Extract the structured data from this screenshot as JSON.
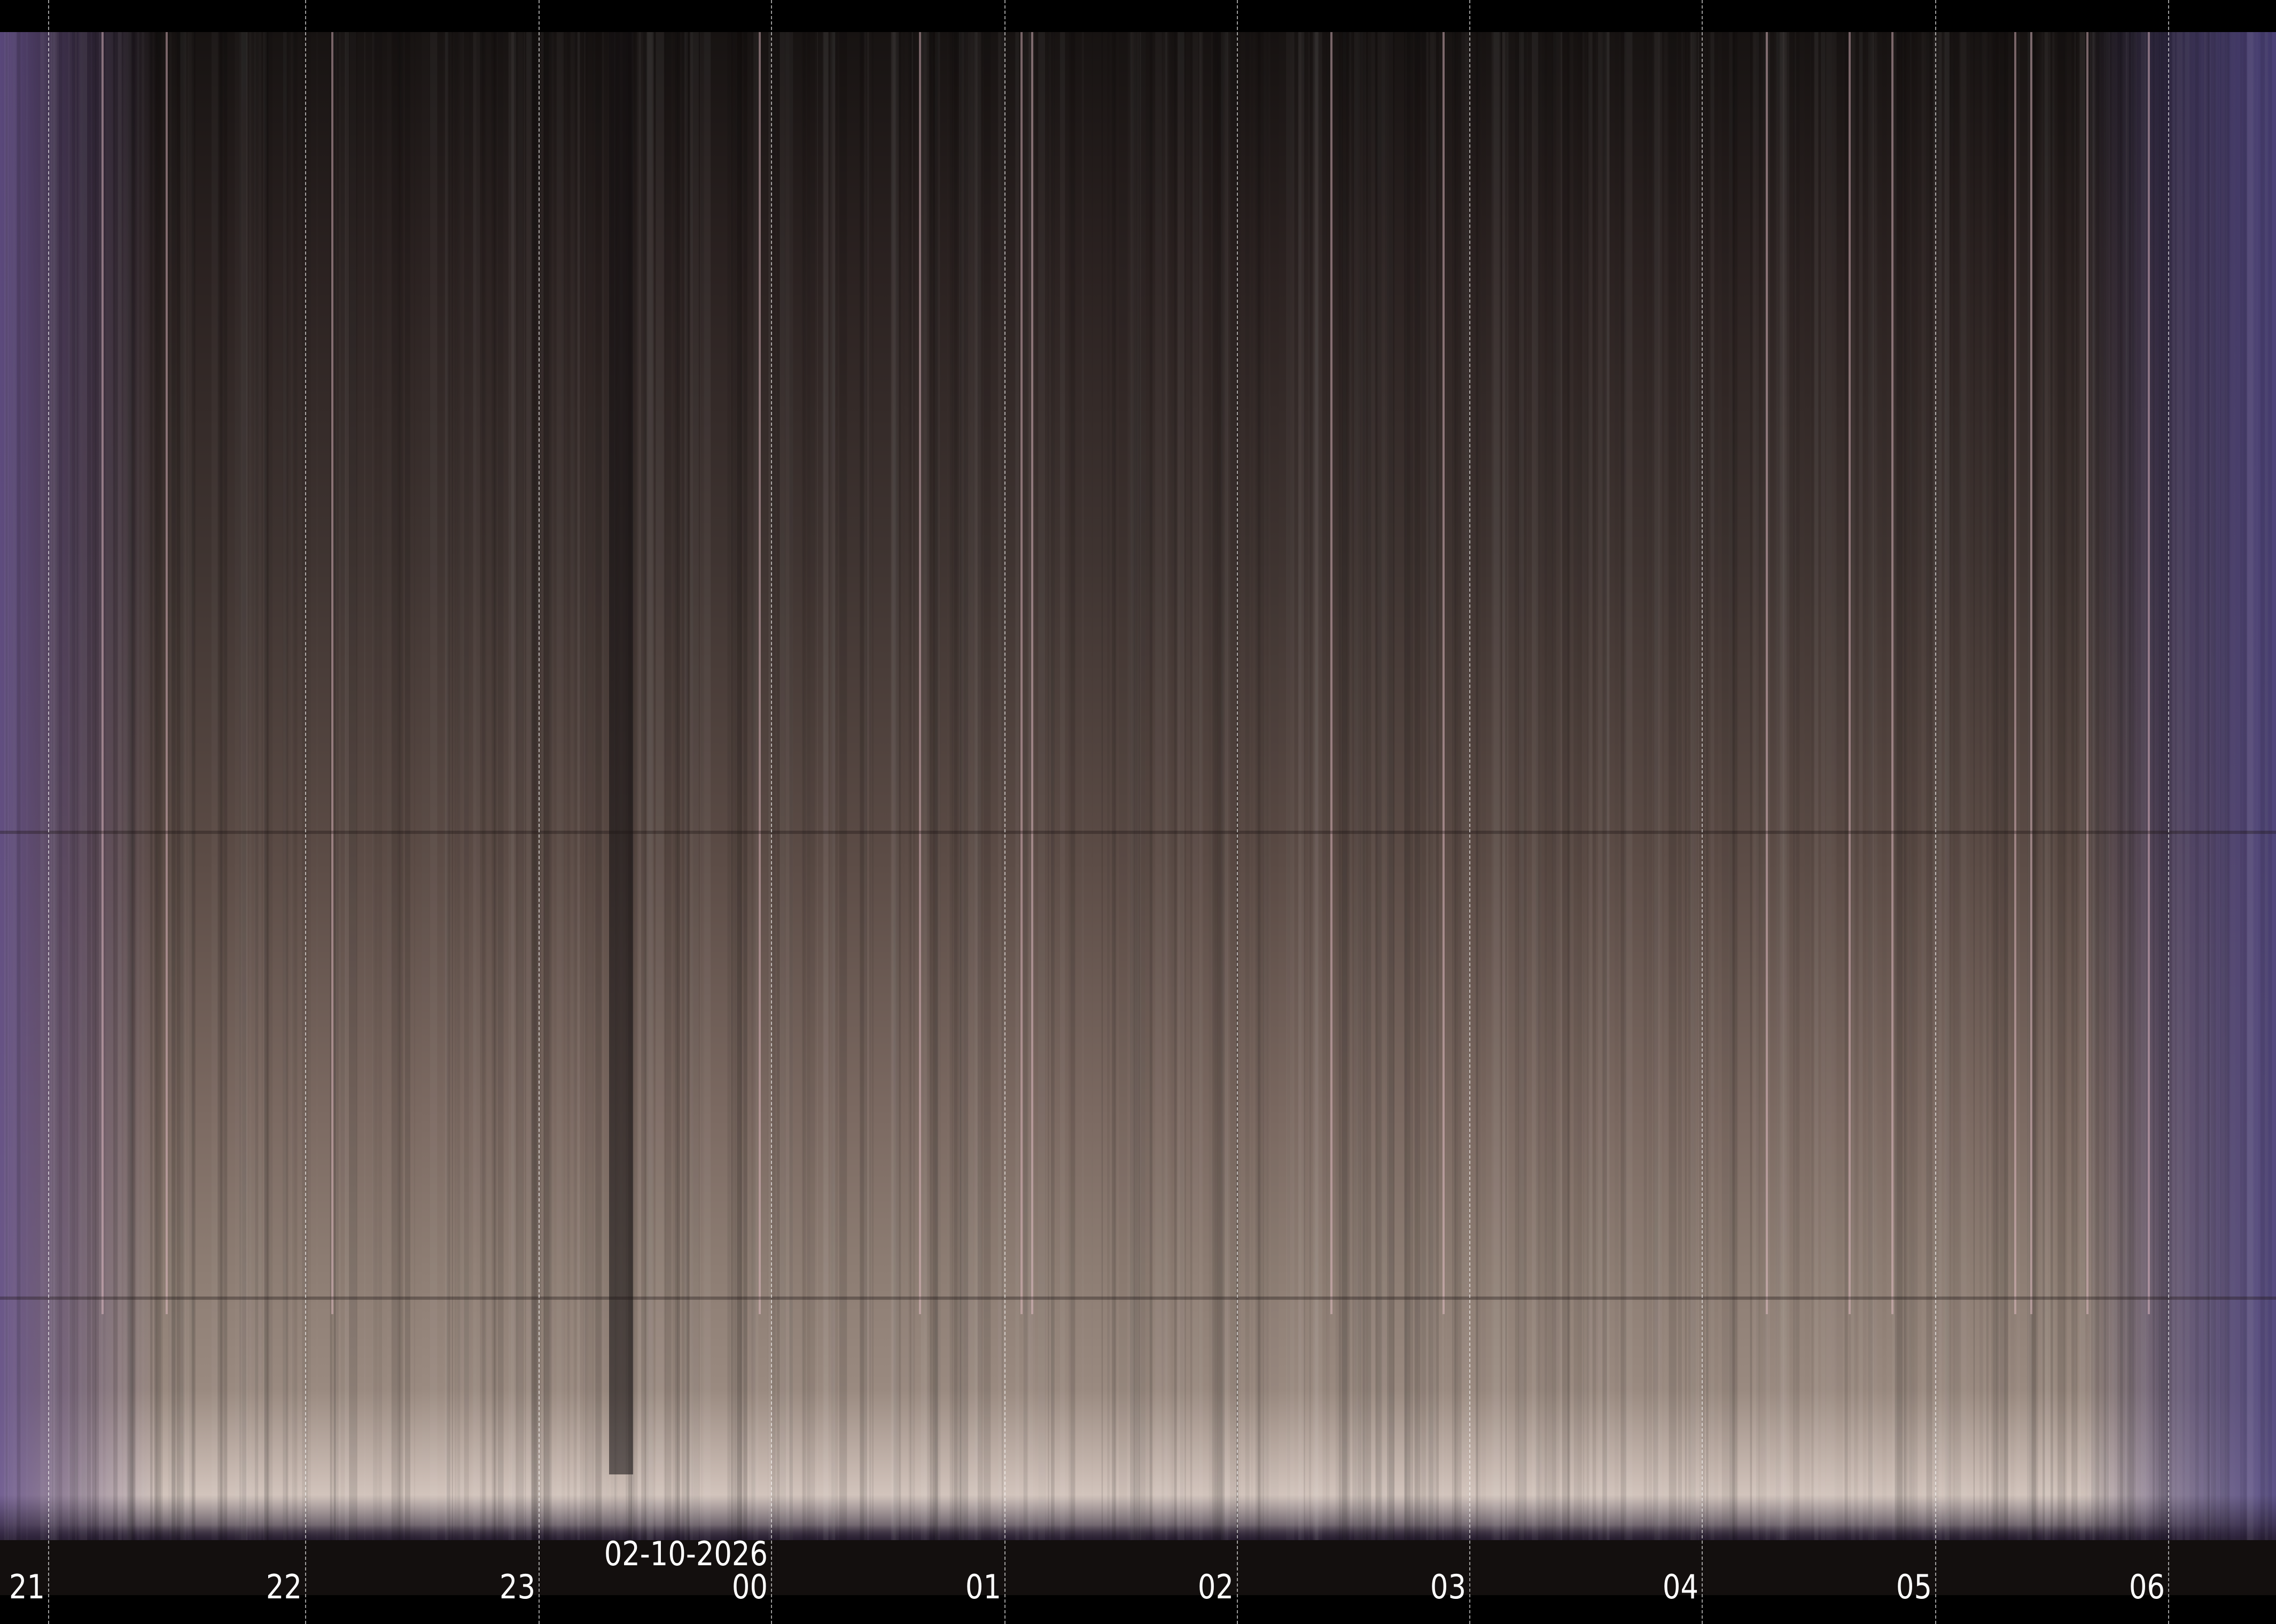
{
  "keogram": {
    "date_label": "02-10-2026",
    "hour_labels": [
      "21",
      "22",
      "23",
      "00",
      "01",
      "02",
      "03",
      "04",
      "05",
      "06"
    ],
    "date_anchor_hour": "00"
  },
  "colors": {
    "sky_top": "#171312",
    "sky_horizon": "#e0d4cc",
    "twilight_edges": "#64508c",
    "label": "#ffffff",
    "background": "#000000"
  }
}
